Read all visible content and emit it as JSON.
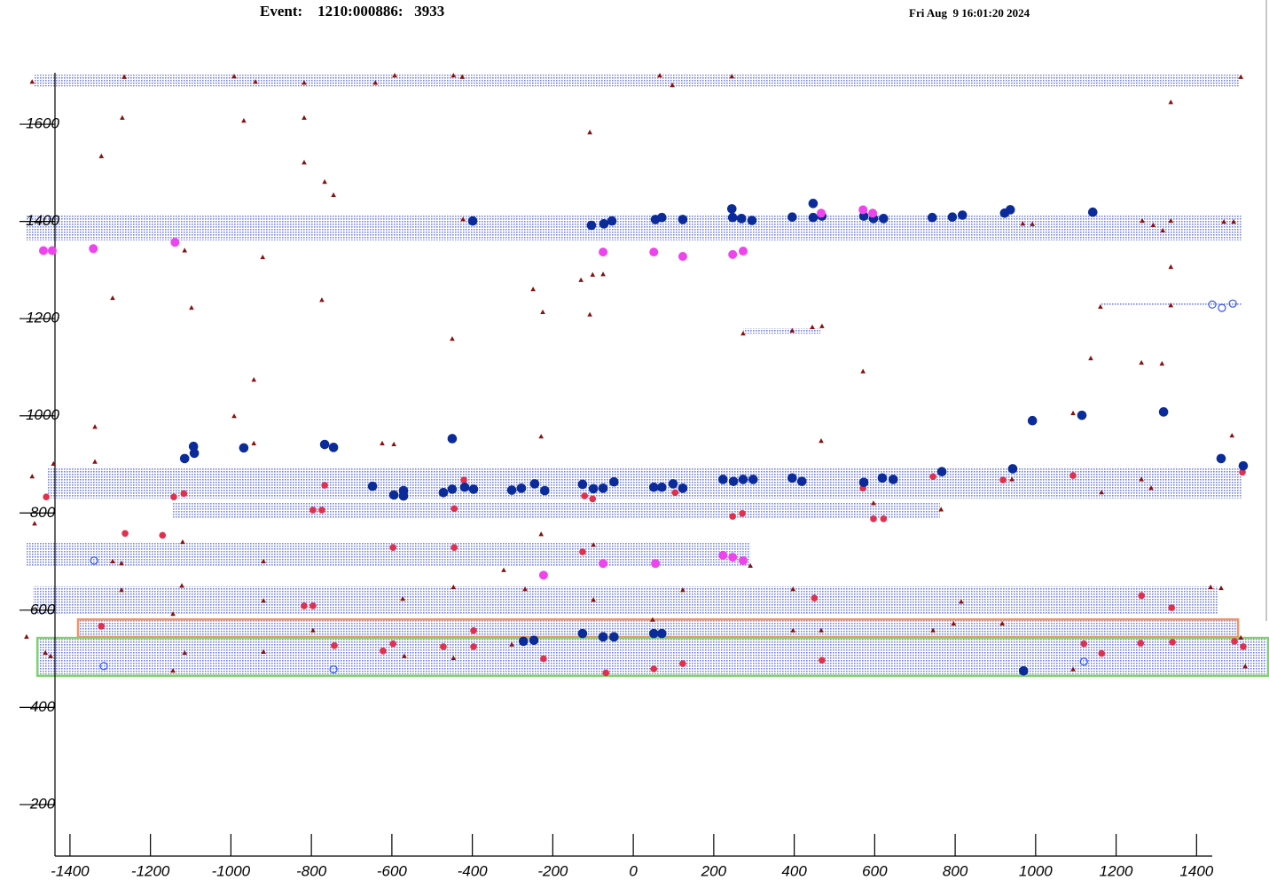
{
  "chart_data": {
    "type": "scatter",
    "title": "Event:    1210:000886:   3933",
    "subtitle": "Fri Aug  9 16:01:20 2024",
    "xlim": [
      -1510,
      1580
    ],
    "ylim": [
      94,
      1706
    ],
    "xticks": [
      -1400,
      -1200,
      -1000,
      -800,
      -600,
      -400,
      -200,
      0,
      200,
      400,
      600,
      800,
      1000,
      1200,
      1400
    ],
    "yticks": [
      200,
      400,
      600,
      800,
      1000,
      1200,
      1400,
      1600
    ],
    "band_color": "#5f6fd6",
    "bands": [
      {
        "x": [
          -1490,
          1507
        ],
        "y": [
          1678,
          1702
        ]
      },
      {
        "x": [
          -1510,
          1511
        ],
        "y": [
          1361,
          1414
        ]
      },
      {
        "x": [
          1160,
          1513
        ],
        "y": [
          1226,
          1233
        ]
      },
      {
        "x": [
          273,
          465
        ],
        "y": [
          1169,
          1180
        ]
      },
      {
        "x": [
          -1457,
          1511
        ],
        "y": [
          830,
          894
        ]
      },
      {
        "x": [
          -1144,
          762
        ],
        "y": [
          788,
          822
        ]
      },
      {
        "x": [
          -1510,
          291
        ],
        "y": [
          691,
          740
        ]
      },
      {
        "x": [
          -1492,
          1452
        ],
        "y": [
          591,
          649
        ]
      },
      {
        "x": [
          -1380,
          1503
        ],
        "y": [
          545,
          580
        ]
      },
      {
        "x": [
          -1480,
          1574
        ],
        "y": [
          468,
          541
        ]
      }
    ],
    "boxes": [
      {
        "x": [
          -1380,
          1503
        ],
        "y": [
          545,
          581
        ],
        "color": "#f0946a"
      },
      {
        "x": [
          -1481,
          1578
        ],
        "y": [
          465,
          543
        ],
        "color": "#7ed36a"
      }
    ],
    "series": [
      {
        "marker": "triangle",
        "color": "#8b1010",
        "x": [
          -1494,
          -1265,
          -992,
          -939,
          -818,
          -641,
          -593,
          -447,
          -425,
          66,
          97,
          245,
          1510,
          -1270,
          -818,
          -108,
          -1322,
          -968,
          -818,
          -767,
          -745,
          1336,
          1265,
          1336,
          1468,
          1492,
          992,
          968,
          1292,
          1316,
          1336,
          1336,
          1161,
          -423,
          -921,
          -1115,
          -1294,
          -774,
          -1098,
          -249,
          -225,
          -130,
          -101,
          -75,
          -108,
          -450,
          395,
          445,
          469,
          273,
          1137,
          1263,
          1314,
          571,
          -943,
          -992,
          -1338,
          1093,
          1488,
          467,
          -229,
          -624,
          -595,
          -943,
          -1338,
          -1441,
          -1494,
          1164,
          1263,
          1287,
          941,
          597,
          765,
          -1488,
          -1272,
          -1120,
          -1294,
          -919,
          -322,
          -229,
          -99,
          291,
          -1144,
          -1122,
          -1272,
          -919,
          -573,
          -447,
          -269,
          -99,
          123,
          397,
          815,
          1435,
          1461,
          1510,
          1521,
          1093,
          745,
          796,
          917,
          397,
          467,
          48,
          -1115,
          -1144,
          -919,
          -796,
          -569,
          -447,
          -302,
          -1461,
          -1448,
          -1508
        ],
        "y": [
          1687,
          1697,
          1698,
          1687,
          1685,
          1685,
          1700,
          1700,
          1697,
          1700,
          1680,
          1698,
          1697,
          1613,
          1613,
          1583,
          1534,
          1607,
          1521,
          1481,
          1454,
          1645,
          1401,
          1401,
          1399,
          1399,
          1394,
          1395,
          1392,
          1381,
          1306,
          1227,
          1224,
          1404,
          1326,
          1340,
          1242,
          1238,
          1222,
          1260,
          1213,
          1279,
          1290,
          1291,
          1208,
          1158,
          1175,
          1182,
          1184,
          1169,
          1118,
          1109,
          1107,
          1091,
          1074,
          999,
          977,
          1005,
          959,
          948,
          957,
          943,
          941,
          943,
          905,
          901,
          875,
          842,
          869,
          851,
          869,
          820,
          807,
          778,
          696,
          740,
          700,
          700,
          682,
          756,
          734,
          691,
          592,
          650,
          641,
          619,
          623,
          647,
          643,
          621,
          641,
          643,
          617,
          647,
          645,
          543,
          484,
          478,
          558,
          572,
          572,
          558,
          558,
          580,
          512,
          475,
          514,
          558,
          505,
          501,
          529,
          512,
          505,
          545
        ]
      },
      {
        "marker": "circle",
        "color": "#e2304c",
        "x": [
          -1459,
          -767,
          -421,
          -1142,
          -1117,
          -1263,
          -1170,
          -796,
          -774,
          -121,
          -101,
          104,
          571,
          597,
          622,
          247,
          271,
          745,
          919,
          1093,
          1514,
          -445,
          -445,
          -126,
          -597,
          -796,
          -818,
          450,
          1263,
          1338,
          -1322,
          -743,
          -397,
          -397,
          -472,
          -597,
          -622,
          -223,
          1120,
          1164,
          1516,
          1494,
          51,
          123,
          469,
          -68,
          1261,
          1340
        ],
        "y": [
          833,
          857,
          868,
          833,
          840,
          758,
          754,
          806,
          806,
          835,
          829,
          842,
          851,
          788,
          788,
          793,
          799,
          875,
          868,
          877,
          884,
          809,
          729,
          720,
          729,
          609,
          609,
          625,
          630,
          605,
          567,
          527,
          558,
          525,
          525,
          531,
          516,
          500,
          531,
          511,
          525,
          536,
          479,
          490,
          497,
          471,
          532,
          534
        ]
      },
      {
        "marker": "circle",
        "color": "#0b2b9b",
        "x": [
          -399,
          -104,
          -73,
          -53,
          55,
          71,
          123,
          245,
          247,
          269,
          295,
          395,
          447,
          447,
          469,
          573,
          597,
          622,
          743,
          793,
          818,
          923,
          937,
          1142,
          992,
          1115,
          1318,
          1461,
          1516,
          -1093,
          -1091,
          -1115,
          -968,
          -767,
          -745,
          -450,
          -648,
          -595,
          -571,
          -571,
          -472,
          -450,
          -419,
          -397,
          -302,
          -278,
          -245,
          -220,
          -126,
          -99,
          -75,
          -48,
          51,
          71,
          99,
          123,
          223,
          249,
          273,
          298,
          395,
          419,
          573,
          619,
          646,
          767,
          943,
          970,
          -273,
          -247,
          -126,
          -75,
          -48,
          51,
          71
        ],
        "y": [
          1401,
          1392,
          1395,
          1401,
          1404,
          1408,
          1404,
          1426,
          1408,
          1406,
          1402,
          1409,
          1437,
          1408,
          1411,
          1411,
          1406,
          1406,
          1408,
          1409,
          1413,
          1417,
          1424,
          1419,
          990,
          1001,
          1008,
          912,
          897,
          937,
          923,
          912,
          934,
          941,
          935,
          953,
          855,
          837,
          846,
          835,
          842,
          849,
          853,
          849,
          847,
          851,
          860,
          846,
          859,
          850,
          851,
          864,
          853,
          853,
          860,
          851,
          869,
          865,
          869,
          869,
          872,
          865,
          863,
          872,
          869,
          885,
          891,
          475,
          536,
          538,
          552,
          545,
          545,
          552,
          552
        ]
      },
      {
        "marker": "circle",
        "color": "#ee44ee",
        "x": [
          -1466,
          -1444,
          -1342,
          -1139,
          -75,
          51,
          123,
          247,
          273,
          467,
          571,
          595,
          -223,
          -75,
          55,
          223,
          247,
          273
        ],
        "y": [
          1340,
          1340,
          1344,
          1357,
          1337,
          1337,
          1328,
          1332,
          1339,
          1417,
          1424,
          1417,
          672,
          696,
          696,
          713,
          709,
          702
        ]
      },
      {
        "marker": "open-circle",
        "color": "#3355ee",
        "x": [
          1439,
          1463,
          1490,
          -1340,
          -1316,
          -745,
          1120
        ],
        "y": [
          1229,
          1222,
          1231,
          702,
          485,
          478,
          494
        ]
      }
    ]
  }
}
